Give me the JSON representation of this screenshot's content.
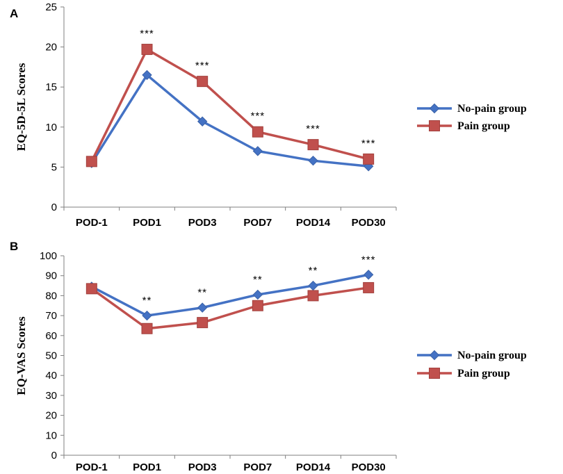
{
  "colors": {
    "no_pain": "#4472C4",
    "pain": "#C0504D",
    "axis": "#7f7f7f"
  },
  "chart_data": [
    {
      "type": "line",
      "panel": "A",
      "title": "",
      "xlabel": "",
      "ylabel": "EQ-5D-5L Scores",
      "ylim": [
        0,
        25
      ],
      "yticks": [
        0,
        5,
        10,
        15,
        20,
        25
      ],
      "categories": [
        "POD-1",
        "POD1",
        "POD3",
        "POD7",
        "POD14",
        "POD30"
      ],
      "series": [
        {
          "name": "No-pain group",
          "marker": "diamond",
          "values": [
            5.5,
            16.5,
            10.7,
            7.0,
            5.8,
            5.1
          ]
        },
        {
          "name": "Pain group",
          "marker": "square",
          "values": [
            5.7,
            19.7,
            15.7,
            9.4,
            7.8,
            6.0
          ]
        }
      ],
      "annotations": [
        "",
        "***",
        "***",
        "***",
        "***",
        "***"
      ],
      "legend": "right",
      "grid": false
    },
    {
      "type": "line",
      "panel": "B",
      "title": "",
      "xlabel": "",
      "ylabel": "EQ-VAS Scores",
      "ylim": [
        0,
        100
      ],
      "yticks": [
        0,
        10,
        20,
        30,
        40,
        50,
        60,
        70,
        80,
        90,
        100
      ],
      "categories": [
        "POD-1",
        "POD1",
        "POD3",
        "POD7",
        "POD14",
        "POD30"
      ],
      "series": [
        {
          "name": "No-pain group",
          "marker": "diamond",
          "values": [
            84.5,
            70.0,
            74.0,
            80.5,
            85.0,
            90.5
          ]
        },
        {
          "name": "Pain group",
          "marker": "square",
          "values": [
            83.5,
            63.5,
            66.5,
            75.0,
            80.0,
            84.0
          ]
        }
      ],
      "annotations": [
        "",
        "**",
        "**",
        "**",
        "**",
        "***"
      ],
      "legend": "right",
      "grid": false
    }
  ]
}
